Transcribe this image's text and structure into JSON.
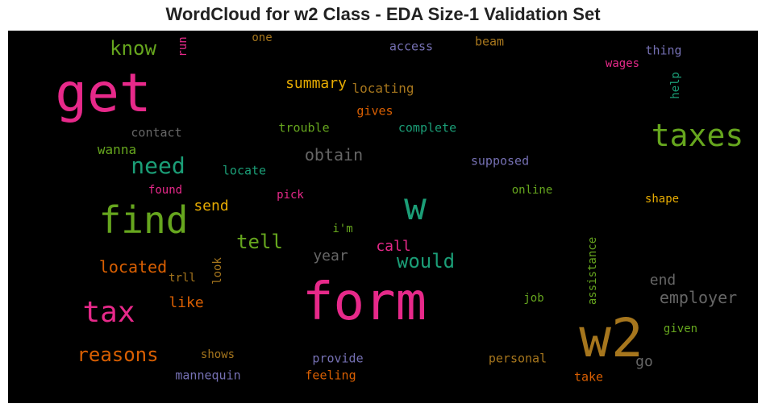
{
  "chart_data": {
    "type": "wordcloud",
    "title": "WordCloud for w2 Class - EDA Size-1 Validation Set",
    "background": "#000000",
    "palette": [
      "#e7298a",
      "#66a61e",
      "#1b9e77",
      "#d95f02",
      "#e6ab02",
      "#a6761d",
      "#7570b3",
      "#666666"
    ],
    "words": [
      {
        "text": "form",
        "color": "#e7298a"
      },
      {
        "text": "w2",
        "color": "#a6761d"
      },
      {
        "text": "get",
        "color": "#e7298a"
      },
      {
        "text": "find",
        "color": "#66a61e"
      },
      {
        "text": "w",
        "color": "#1b9e77"
      },
      {
        "text": "taxes",
        "color": "#66a61e"
      },
      {
        "text": "tax",
        "color": "#e7298a"
      },
      {
        "text": "need",
        "color": "#1b9e77"
      },
      {
        "text": "reasons",
        "color": "#d95f02"
      },
      {
        "text": "know",
        "color": "#66a61e"
      },
      {
        "text": "tell",
        "color": "#66a61e"
      },
      {
        "text": "would",
        "color": "#1b9e77"
      },
      {
        "text": "employer",
        "color": "#666666"
      },
      {
        "text": "obtain",
        "color": "#666666"
      },
      {
        "text": "located",
        "color": "#d95f02"
      },
      {
        "text": "summary",
        "color": "#e6ab02"
      },
      {
        "text": "year",
        "color": "#666666"
      },
      {
        "text": "call",
        "color": "#e7298a"
      },
      {
        "text": "send",
        "color": "#e6ab02"
      },
      {
        "text": "end",
        "color": "#666666"
      },
      {
        "text": "go",
        "color": "#666666"
      },
      {
        "text": "like",
        "color": "#d95f02"
      },
      {
        "text": "wanna",
        "color": "#66a61e"
      },
      {
        "text": "locating",
        "color": "#a6761d"
      },
      {
        "text": "complete",
        "color": "#1b9e77"
      },
      {
        "text": "trouble",
        "color": "#66a61e"
      },
      {
        "text": "contact",
        "color": "#666666"
      },
      {
        "text": "gives",
        "color": "#d95f02"
      },
      {
        "text": "supposed",
        "color": "#7570b3"
      },
      {
        "text": "locate",
        "color": "#1b9e77"
      },
      {
        "text": "found",
        "color": "#e7298a"
      },
      {
        "text": "pick",
        "color": "#e7298a"
      },
      {
        "text": "online",
        "color": "#66a61e"
      },
      {
        "text": "shape",
        "color": "#e6ab02"
      },
      {
        "text": "i'm",
        "color": "#66a61e"
      },
      {
        "text": "trll",
        "color": "#a6761d"
      },
      {
        "text": "look",
        "color": "#a6761d"
      },
      {
        "text": "job",
        "color": "#66a61e"
      },
      {
        "text": "given",
        "color": "#66a61e"
      },
      {
        "text": "shows",
        "color": "#a6761d"
      },
      {
        "text": "provide",
        "color": "#7570b3"
      },
      {
        "text": "personal",
        "color": "#a6761d"
      },
      {
        "text": "mannequin",
        "color": "#7570b3"
      },
      {
        "text": "feeling",
        "color": "#d95f02"
      },
      {
        "text": "take",
        "color": "#d95f02"
      },
      {
        "text": "access",
        "color": "#7570b3"
      },
      {
        "text": "beam",
        "color": "#a6761d"
      },
      {
        "text": "thing",
        "color": "#7570b3"
      },
      {
        "text": "wages",
        "color": "#e7298a"
      },
      {
        "text": "help",
        "color": "#1b9e77"
      },
      {
        "text": "one",
        "color": "#a6761d"
      },
      {
        "text": "run",
        "color": "#e7298a"
      },
      {
        "text": "assistance",
        "color": "#66a61e"
      }
    ]
  }
}
